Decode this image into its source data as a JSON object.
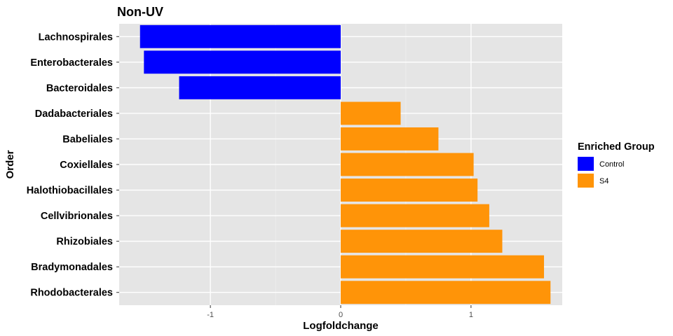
{
  "chart_data": {
    "type": "bar",
    "orientation": "horizontal",
    "title": "Non-UV",
    "xlabel": "Logfoldchange",
    "ylabel": "Order",
    "xlim": [
      -1.7,
      1.7
    ],
    "x_ticks": [
      -1,
      0,
      1
    ],
    "x_tick_labels": [
      "-1",
      "0",
      "1"
    ],
    "grid": true,
    "legend": {
      "title": "Enriched Group",
      "placement": "right",
      "entries": [
        {
          "label": "Control",
          "color": "#0000ff"
        },
        {
          "label": "S4",
          "color": "#ff9408"
        }
      ]
    },
    "categories": [
      "Lachnospirales",
      "Enterobacterales",
      "Bacteroidales",
      "Dadabacteriales",
      "Babeliales",
      "Coxiellales",
      "Halothiobacillales",
      "Cellvibrionales",
      "Rhizobiales",
      "Bradymonadales",
      "Rhodobacterales"
    ],
    "values": [
      -1.54,
      -1.51,
      -1.24,
      0.46,
      0.75,
      1.02,
      1.05,
      1.14,
      1.24,
      1.56,
      1.61
    ],
    "groups": [
      "Control",
      "Control",
      "Control",
      "S4",
      "S4",
      "S4",
      "S4",
      "S4",
      "S4",
      "S4",
      "S4"
    ]
  }
}
